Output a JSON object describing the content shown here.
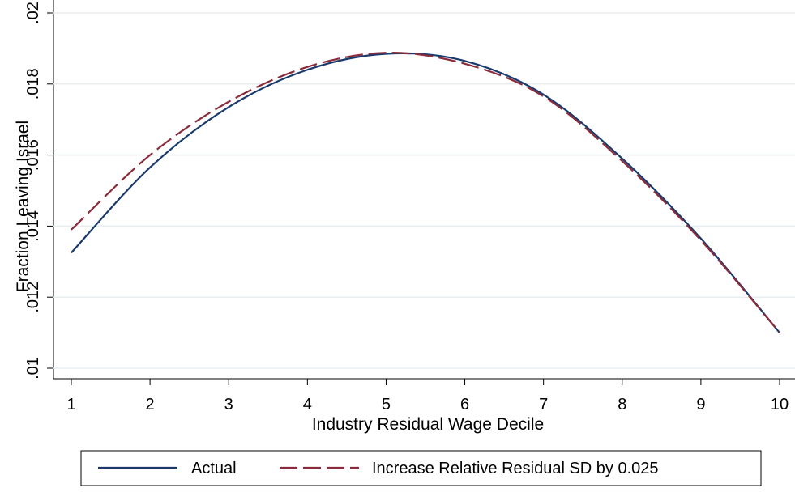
{
  "chart_data": {
    "type": "line",
    "title": "",
    "xlabel": "Industry Residual Wage Decile",
    "ylabel": "Fraction Leaving Israel",
    "xlim": [
      1,
      10
    ],
    "ylim": [
      0.01,
      0.02
    ],
    "x_ticks": [
      1,
      2,
      3,
      4,
      5,
      6,
      7,
      8,
      9,
      10
    ],
    "x_tick_labels": [
      "1",
      "2",
      "3",
      "4",
      "5",
      "6",
      "7",
      "8",
      "9",
      "10"
    ],
    "y_ticks": [
      0.01,
      0.012,
      0.014,
      0.016,
      0.018,
      0.02
    ],
    "y_tick_labels": [
      ".01",
      ".012",
      ".014",
      ".016",
      ".018",
      ".02"
    ],
    "grid": true,
    "legend_position": "bottom",
    "x": [
      1,
      2,
      3,
      4,
      5,
      6,
      7,
      8,
      9,
      10
    ],
    "series": [
      {
        "name": "Actual",
        "color": "#1a3a6b",
        "style": "solid",
        "values": [
          0.01325,
          0.01565,
          0.01735,
          0.0184,
          0.01885,
          0.01865,
          0.0177,
          0.0159,
          0.01365,
          0.011
        ]
      },
      {
        "name": "Increase Relative Residual SD by 0.025",
        "color": "#8b2c3c",
        "style": "dashed",
        "values": [
          0.0139,
          0.016,
          0.0175,
          0.01848,
          0.01888,
          0.01857,
          0.01765,
          0.01583,
          0.0136,
          0.011
        ]
      }
    ]
  }
}
